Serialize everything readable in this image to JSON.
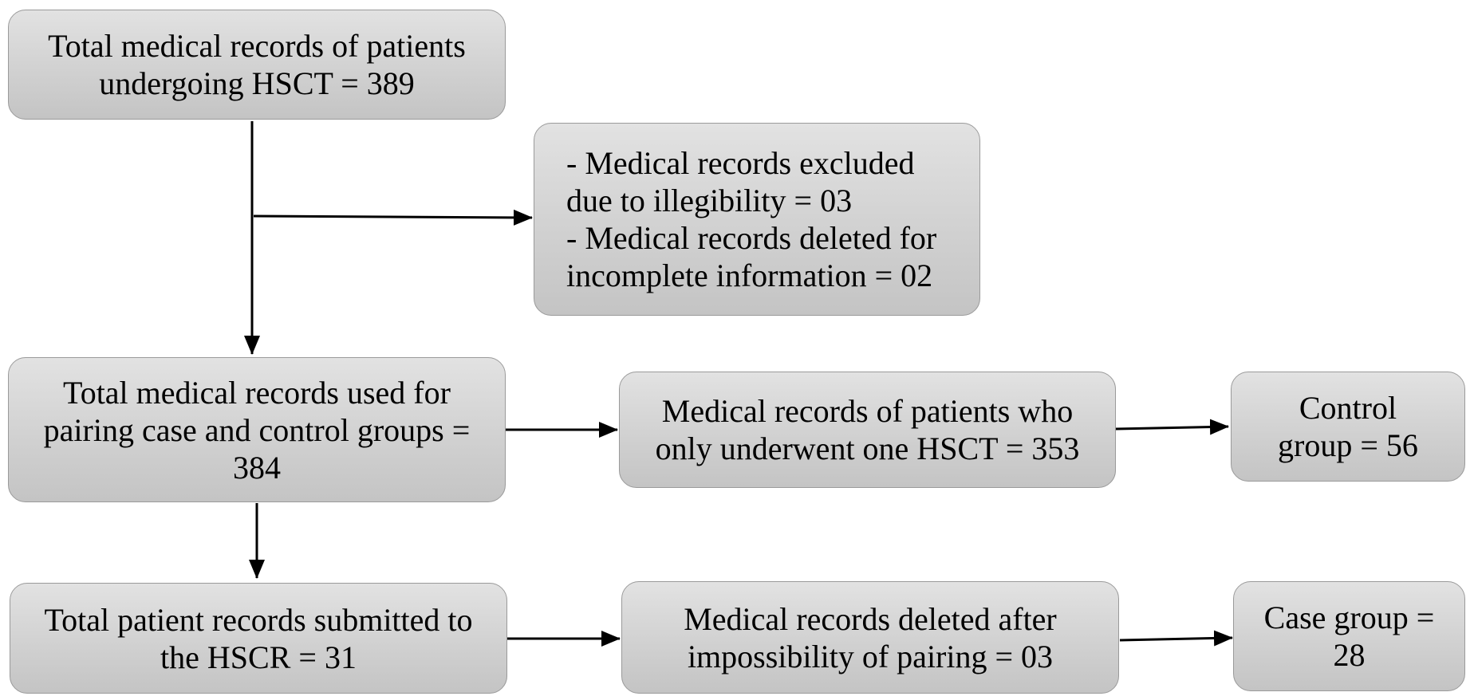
{
  "boxes": {
    "total_records": {
      "lines": [
        "Total medical records of patients",
        "undergoing HSCT = 389"
      ]
    },
    "exclusions": {
      "lines": [
        "- Medical records excluded",
        "due to illegibility = 03",
        "- Medical records deleted for",
        "incomplete information = 02"
      ]
    },
    "pairing": {
      "lines": [
        "Total medical records used for",
        "pairing case and control groups =",
        "384"
      ]
    },
    "one_hsct": {
      "lines": [
        "Medical records of patients who",
        "only underwent one HSCT = 353"
      ]
    },
    "control_group": {
      "lines": [
        "Control",
        "group = 56"
      ]
    },
    "hscr_submitted": {
      "lines": [
        "Total patient records submitted to",
        "the HSCR = 31"
      ]
    },
    "pairing_deleted": {
      "lines": [
        "Medical records deleted after",
        "impossibility of pairing = 03"
      ]
    },
    "case_group": {
      "lines": [
        "Case group =",
        "28"
      ]
    }
  },
  "colors": {
    "box_fill_top": "#e2e2e2",
    "box_fill_bottom": "#c4c4c4",
    "box_border": "#9a9a9a",
    "arrow": "#000000",
    "text": "#000000"
  }
}
